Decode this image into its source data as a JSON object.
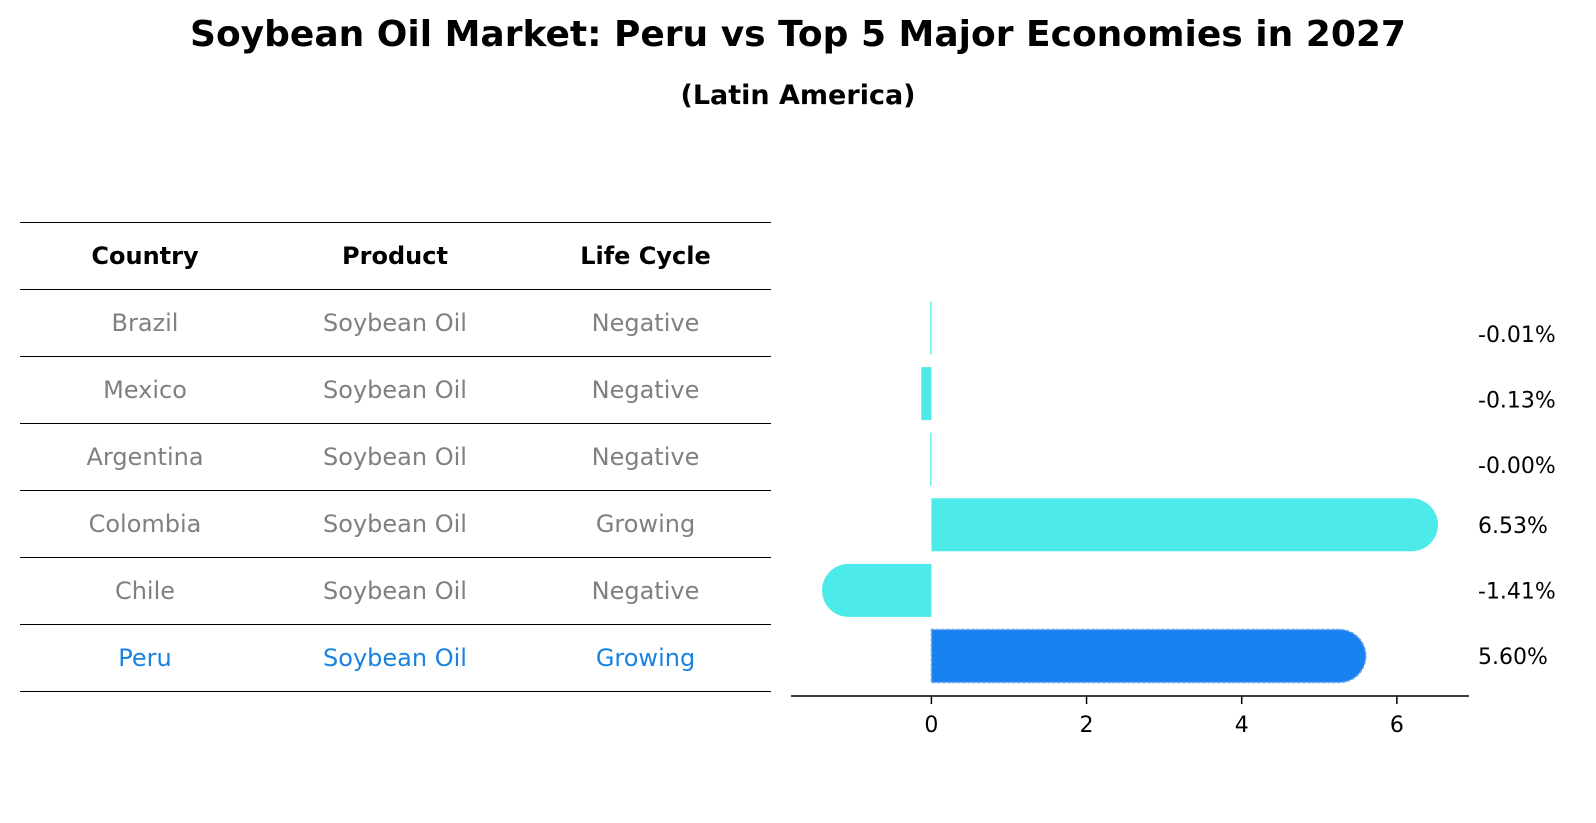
{
  "chart_data": {
    "type": "bar",
    "orientation": "horizontal",
    "title": "Soybean Oil Market: Peru vs Top 5 Major Economies in 2027",
    "subtitle": "(Latin America)",
    "categories": [
      "Brazil",
      "Mexico",
      "Argentina",
      "Colombia",
      "Chile",
      "Peru"
    ],
    "values": [
      -0.01,
      -0.13,
      -0.0,
      6.53,
      -1.41,
      5.6
    ],
    "value_labels": [
      "-0.01%",
      "-0.13%",
      "-0.00%",
      "6.53%",
      "-1.41%",
      "5.60%"
    ],
    "xlim": [
      -1.81,
      6.93
    ],
    "xticks": [
      0,
      2,
      4,
      6
    ],
    "highlight": "Peru",
    "colors": {
      "default": "#4deaea",
      "highlight": "#1a82f0"
    },
    "grid": false
  },
  "table": {
    "headers": [
      "Country",
      "Product",
      "Life Cycle"
    ],
    "rows": [
      [
        "Brazil",
        "Soybean Oil",
        "Negative"
      ],
      [
        "Mexico",
        "Soybean Oil",
        "Negative"
      ],
      [
        "Argentina",
        "Soybean Oil",
        "Negative"
      ],
      [
        "Colombia",
        "Soybean Oil",
        "Growing"
      ],
      [
        "Chile",
        "Soybean Oil",
        "Negative"
      ],
      [
        "Peru",
        "Soybean Oil",
        "Growing"
      ]
    ]
  }
}
